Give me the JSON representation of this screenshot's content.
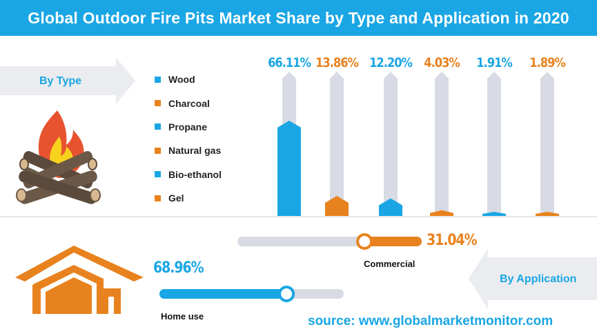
{
  "header": {
    "title": "Global Outdoor Fire Pits Market Share by Type and Application in 2020"
  },
  "sections": {
    "by_type": "By Type",
    "by_application": "By Application"
  },
  "source": "source: www.globalmarketmonitor.com",
  "colors": {
    "blue": "#1aa6e4",
    "orange": "#e8821e",
    "track": "#d8dbe3"
  },
  "icons": {
    "type": "campfire-icon",
    "application": "house-icon"
  },
  "chart_data": [
    {
      "type": "bar",
      "title": "By Type",
      "categories": [
        "Wood",
        "Charcoal",
        "Propane",
        "Natural gas",
        "Bio-ethanol",
        "Gel"
      ],
      "values": [
        66.11,
        13.86,
        12.2,
        4.03,
        1.91,
        1.89
      ],
      "value_labels": [
        "66.11%",
        "13.86%",
        "12.20%",
        "4.03%",
        "1.91%",
        "1.89%"
      ],
      "colors": [
        "#1aa6e4",
        "#e8821e",
        "#1aa6e4",
        "#e8821e",
        "#1aa6e4",
        "#e8821e"
      ],
      "ylim": [
        0,
        100
      ],
      "legend": "left"
    },
    {
      "type": "bar",
      "title": "By Application",
      "categories": [
        "Commercial",
        "Home use"
      ],
      "values": [
        31.04,
        68.96
      ],
      "value_labels": [
        "31.04%",
        "68.96%"
      ],
      "colors": [
        "#e8821e",
        "#1aa6e4"
      ],
      "ylim": [
        0,
        100
      ]
    }
  ]
}
